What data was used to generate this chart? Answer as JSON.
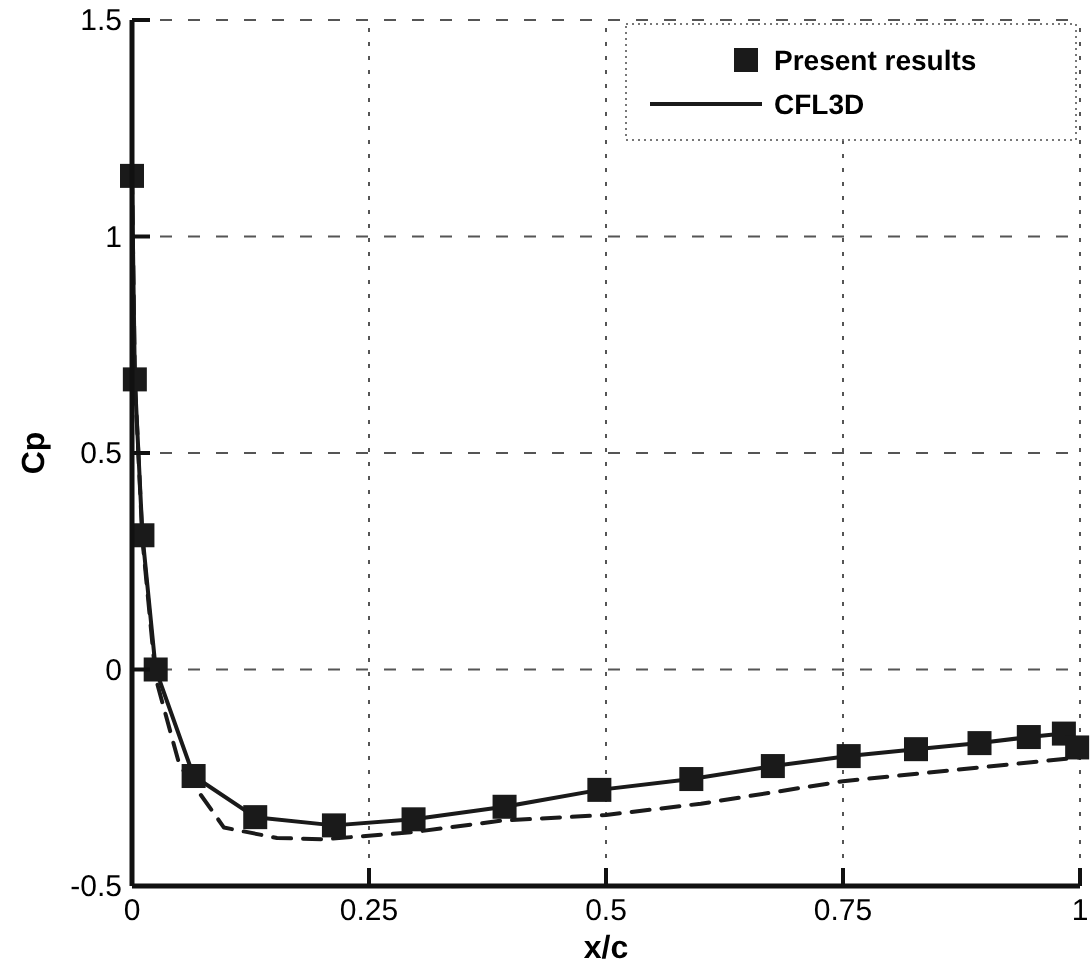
{
  "chart_data": {
    "type": "line",
    "xlabel": "x/c",
    "ylabel": "Cp",
    "xlim": [
      0,
      1
    ],
    "ylim": [
      -0.5,
      1.5
    ],
    "xticks": [
      0,
      0.25,
      0.5,
      0.75,
      1
    ],
    "yticks": [
      -0.5,
      0,
      0.5,
      1,
      1.5
    ],
    "grid": true,
    "legend": "top right",
    "series": [
      {
        "name": "Present results",
        "type": "scatter",
        "marker": "square",
        "color": "#1a1a1a",
        "x": [
          0.0,
          0.003,
          0.011,
          0.025,
          0.065,
          0.13,
          0.213,
          0.297,
          0.393,
          0.493,
          0.59,
          0.676,
          0.756,
          0.827,
          0.894,
          0.946,
          0.983,
          0.997
        ],
        "values": [
          1.14,
          0.67,
          0.31,
          0.0,
          -0.246,
          -0.341,
          -0.36,
          -0.346,
          -0.317,
          -0.278,
          -0.253,
          -0.223,
          -0.2,
          -0.184,
          -0.17,
          -0.156,
          -0.148,
          -0.18
        ]
      },
      {
        "name": "CFL3D",
        "line_style": "solid",
        "color": "#1a1a1a",
        "x": [
          0.0,
          0.003,
          0.011,
          0.025,
          0.065,
          0.13,
          0.213,
          0.297,
          0.393,
          0.493,
          0.59,
          0.676,
          0.756,
          0.827,
          0.894,
          0.946,
          0.983,
          0.997
        ],
        "values": [
          1.14,
          0.67,
          0.31,
          0.0,
          -0.246,
          -0.341,
          -0.36,
          -0.346,
          -0.317,
          -0.278,
          -0.253,
          -0.223,
          -0.2,
          -0.184,
          -0.17,
          -0.156,
          -0.148,
          -0.18
        ]
      },
      {
        "line_style": "dashed",
        "color": "#1a1a1a",
        "x": [
          0.0,
          0.003,
          0.011,
          0.025,
          0.05,
          0.097,
          0.153,
          0.203,
          0.295,
          0.39,
          0.5,
          0.6,
          0.75,
          0.9,
          1.0
        ],
        "values": [
          1.14,
          0.67,
          0.3,
          -0.02,
          -0.22,
          -0.365,
          -0.389,
          -0.392,
          -0.376,
          -0.349,
          -0.336,
          -0.31,
          -0.258,
          -0.225,
          -0.203
        ]
      }
    ]
  }
}
